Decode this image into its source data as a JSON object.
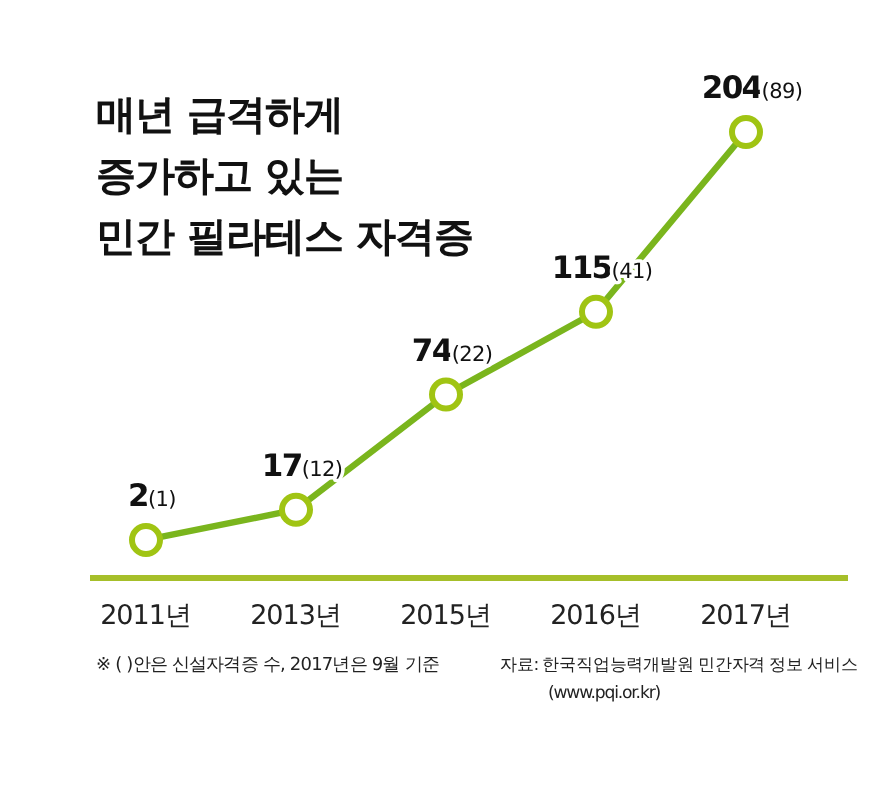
{
  "chart_data": {
    "type": "line",
    "title": "매년 급격하게\n증가하고 있는\n민간 필라테스 자격증",
    "categories": [
      "2011년",
      "2013년",
      "2015년",
      "2016년",
      "2017년"
    ],
    "series": [
      {
        "color": "#7ab51d",
        "values": [
          2,
          17,
          74,
          115,
          204
        ],
        "value_labels": [
          "2(1)",
          "17(12)",
          "74(22)",
          "115(41)",
          "204(89)"
        ]
      }
    ],
    "marker": "circle",
    "annotations": [
      "※ ( )안은 신설자격증 수, 2017년은 9월 기준",
      "자료: 한국직업능력개발원 민간자격 정보 서비스\n(www.pqi.or.kr)"
    ]
  }
}
